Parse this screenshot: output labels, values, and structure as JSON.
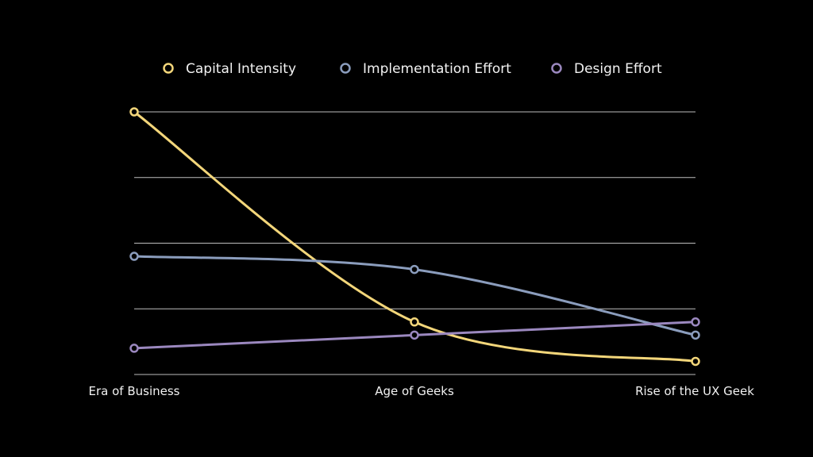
{
  "chart_data": {
    "type": "line",
    "categories": [
      "Era of Business",
      "Age of Geeks",
      "Rise of the UX Geek"
    ],
    "series": [
      {
        "name": "Capital Intensity",
        "values": [
          4.0,
          0.8,
          0.2
        ],
        "color": "#f3d67a"
      },
      {
        "name": "Implementation Effort",
        "values": [
          1.8,
          1.6,
          0.6
        ],
        "color": "#8b9dbd"
      },
      {
        "name": "Design Effort",
        "values": [
          0.4,
          0.6,
          0.8
        ],
        "color": "#9b88bf"
      }
    ],
    "ylim": [
      0,
      4
    ],
    "grid": true,
    "legend_position": "top",
    "title": "",
    "xlabel": "",
    "ylabel": ""
  }
}
